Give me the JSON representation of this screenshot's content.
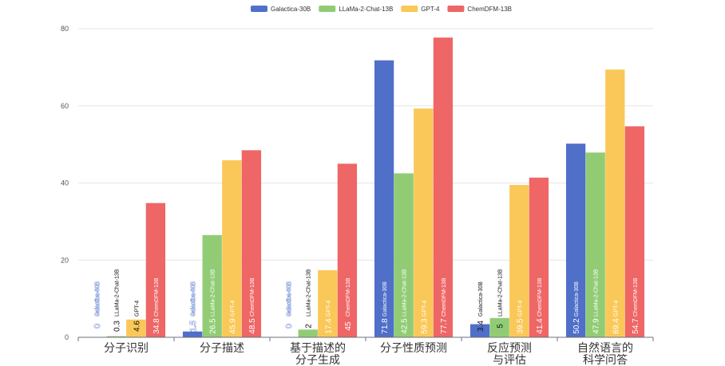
{
  "chart_data": {
    "type": "bar",
    "categories": [
      [
        "分子识别"
      ],
      [
        "分子描述"
      ],
      [
        "基于描述的",
        "分子生成"
      ],
      [
        "分子性质预测"
      ],
      [
        "反应预测",
        "与评估"
      ],
      [
        "自然语言的",
        "科学问答"
      ]
    ],
    "series": [
      {
        "name": "Galactica-30B",
        "color": "#4f6fc9",
        "values": [
          0,
          1.5,
          0,
          71.8,
          3.4,
          50.2
        ]
      },
      {
        "name": "LLaMa-2-Chat-13B",
        "color": "#91cc75",
        "values": [
          0.3,
          26.5,
          2,
          42.5,
          5,
          47.9
        ]
      },
      {
        "name": "GPT-4",
        "color": "#fac858",
        "values": [
          4.6,
          45.9,
          17.4,
          59.3,
          39.5,
          69.4
        ]
      },
      {
        "name": "ChemDFM-13B",
        "color": "#ee6666",
        "values": [
          34.8,
          48.5,
          45,
          77.7,
          41.4,
          54.7
        ]
      }
    ],
    "ylim": [
      0,
      80
    ],
    "yticks": [
      0,
      20,
      40,
      60,
      80
    ],
    "grid": true,
    "legend_position": "top"
  }
}
